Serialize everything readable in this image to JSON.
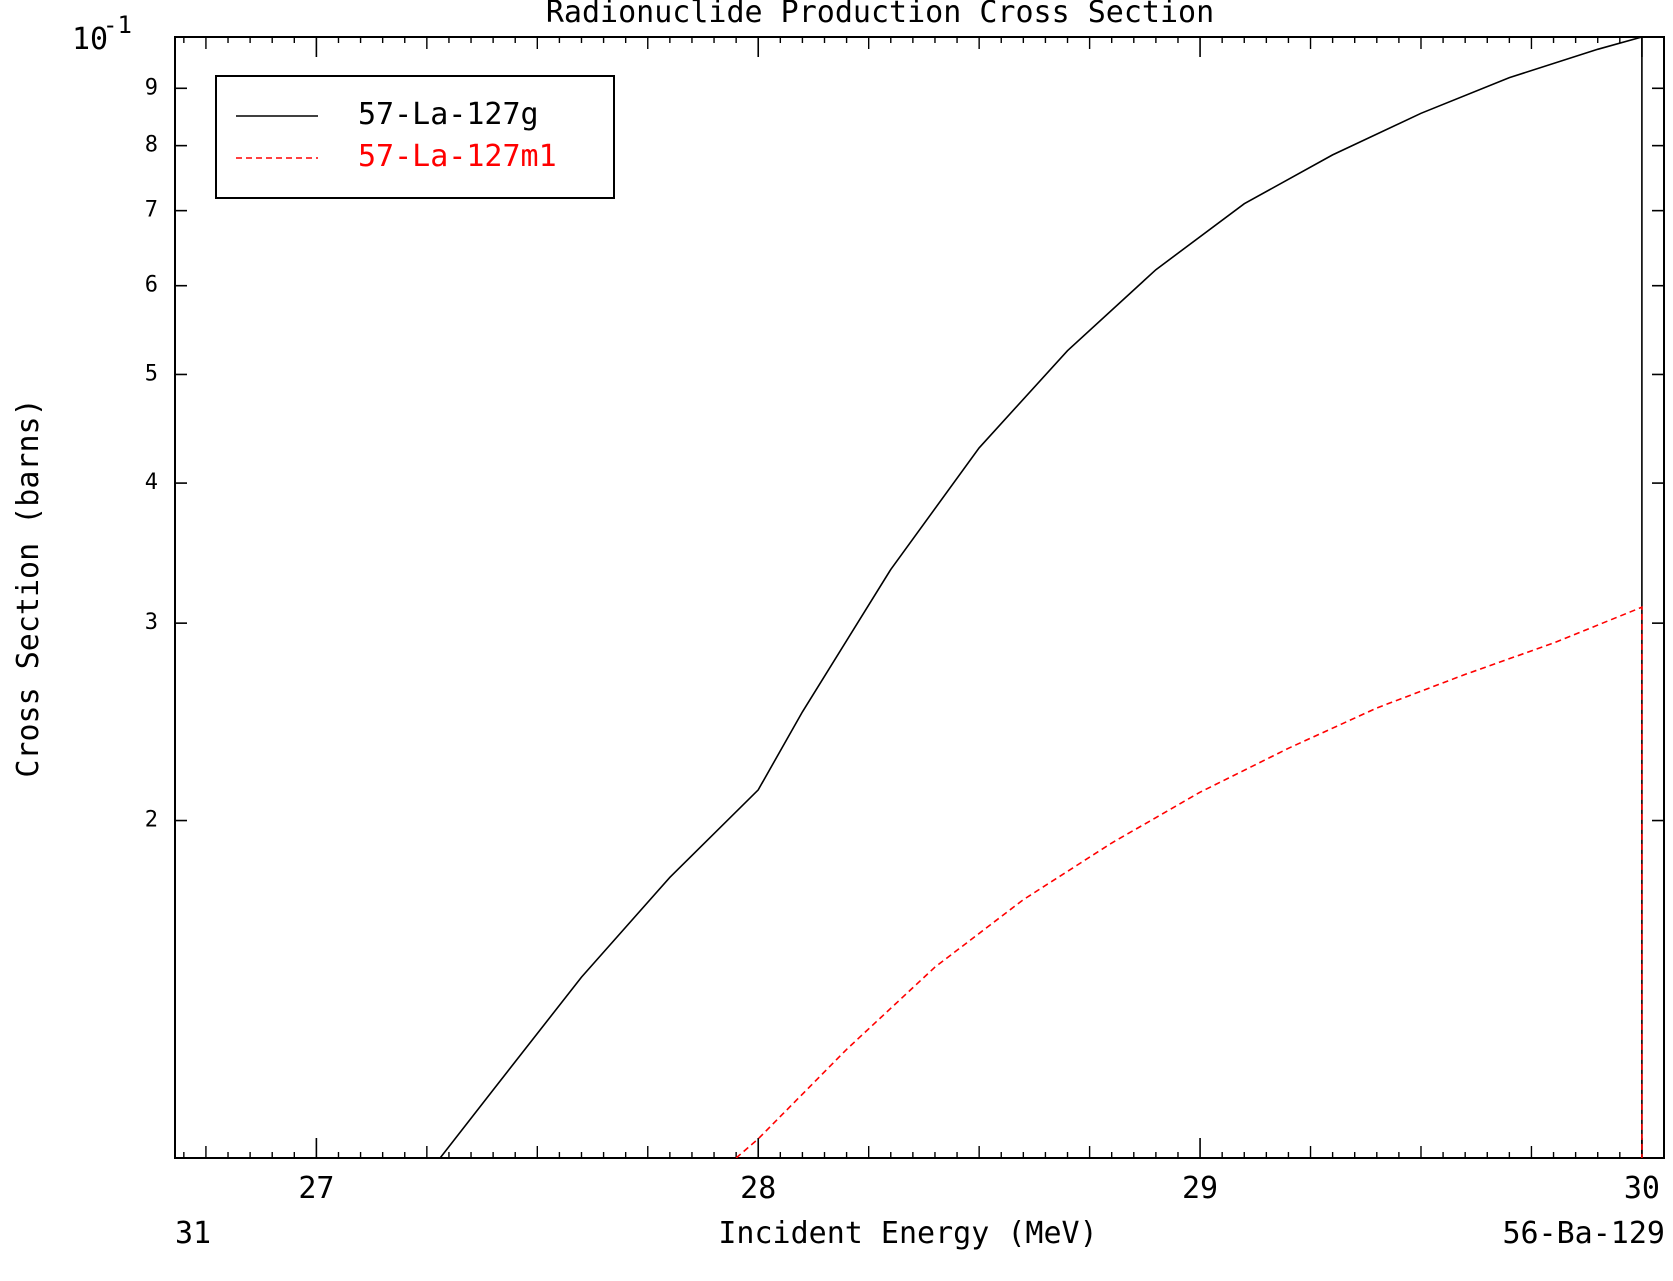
{
  "chart_data": {
    "type": "line",
    "title": "Radionuclide Production Cross Section",
    "xlabel": "Incident Energy (MeV)",
    "ylabel": "Cross Section (barns)",
    "footer_left": "31",
    "footer_right": "56-Ba-129",
    "y_decade_label": {
      "base": "10",
      "exponent": "-1"
    },
    "xlim": [
      26.68,
      30.05
    ],
    "ylim": [
      0.1,
      1.0
    ],
    "y_scale": "log",
    "x_ticks": [
      27,
      28,
      29,
      30
    ],
    "x_tick_labels": [
      "27",
      "28",
      "29",
      "30"
    ],
    "y_ticks": [
      0.2,
      0.3,
      0.4,
      0.5,
      0.6,
      0.7,
      0.8,
      0.9
    ],
    "y_tick_labels": [
      "2",
      "3",
      "4",
      "5",
      "6",
      "7",
      "8",
      "9"
    ],
    "legend_position": "top-left",
    "series": [
      {
        "name": "57-La-127g",
        "color": "#000000",
        "dash": "solid",
        "x": [
          27.28,
          27.4,
          27.6,
          27.8,
          28.0,
          28.1,
          28.3,
          28.5,
          28.7,
          28.9,
          29.1,
          29.3,
          29.5,
          29.7,
          29.9,
          30.0,
          30.0
        ],
        "y": [
          0.1,
          0.115,
          0.145,
          0.178,
          0.213,
          0.25,
          0.335,
          0.43,
          0.525,
          0.62,
          0.71,
          0.785,
          0.855,
          0.92,
          0.975,
          1.0,
          0.1
        ]
      },
      {
        "name": "57-La-127m1",
        "color": "#ff0000",
        "dash": "dashed",
        "x": [
          27.95,
          28.0,
          28.2,
          28.4,
          28.6,
          28.8,
          29.0,
          29.2,
          29.4,
          29.6,
          29.8,
          30.0,
          30.0
        ],
        "y": [
          0.1,
          0.104,
          0.125,
          0.148,
          0.17,
          0.191,
          0.212,
          0.232,
          0.252,
          0.27,
          0.288,
          0.31,
          0.1
        ]
      }
    ]
  }
}
